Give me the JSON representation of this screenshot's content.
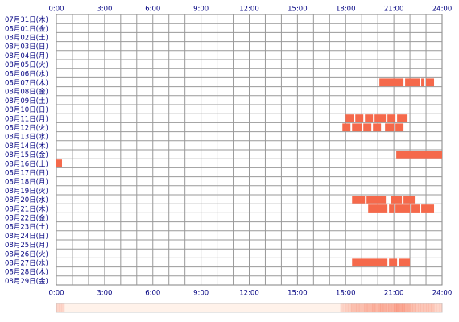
{
  "chart_data": {
    "type": "timeline",
    "color": "#f5694b",
    "xlim": [
      0,
      24
    ],
    "xticks": [
      {
        "value": 0,
        "label": "0:00"
      },
      {
        "value": 3,
        "label": "3:00"
      },
      {
        "value": 6,
        "label": "6:00"
      },
      {
        "value": 9,
        "label": "9:00"
      },
      {
        "value": 12,
        "label": "12:00"
      },
      {
        "value": 15,
        "label": "15:00"
      },
      {
        "value": 18,
        "label": "18:00"
      },
      {
        "value": 21,
        "label": "21:00"
      },
      {
        "value": 24,
        "label": "24:00"
      }
    ],
    "grid_step": 1,
    "rows": [
      {
        "label": "07月31日(木)",
        "segments": []
      },
      {
        "label": "08月01日(金)",
        "segments": []
      },
      {
        "label": "08月02日(土)",
        "segments": []
      },
      {
        "label": "08月03日(日)",
        "segments": []
      },
      {
        "label": "08月04日(月)",
        "segments": []
      },
      {
        "label": "08月05日(火)",
        "segments": []
      },
      {
        "label": "08月06日(水)",
        "segments": []
      },
      {
        "label": "08月07日(木)",
        "segments": [
          [
            20.1,
            21.6
          ],
          [
            21.7,
            22.6
          ],
          [
            22.7,
            22.9
          ],
          [
            23.0,
            23.5
          ]
        ]
      },
      {
        "label": "08月08日(金)",
        "segments": []
      },
      {
        "label": "08月09日(土)",
        "segments": []
      },
      {
        "label": "08月10日(日)",
        "segments": []
      },
      {
        "label": "08月11日(月)",
        "segments": [
          [
            18.0,
            18.5
          ],
          [
            18.6,
            19.1
          ],
          [
            19.2,
            19.7
          ],
          [
            19.8,
            20.5
          ],
          [
            20.6,
            21.1
          ],
          [
            21.2,
            21.85
          ]
        ]
      },
      {
        "label": "08月12日(火)",
        "segments": [
          [
            17.8,
            18.3
          ],
          [
            18.4,
            19.0
          ],
          [
            19.1,
            19.6
          ],
          [
            19.7,
            20.2
          ],
          [
            20.45,
            21.0
          ],
          [
            21.1,
            21.6
          ]
        ]
      },
      {
        "label": "08月13日(水)",
        "segments": []
      },
      {
        "label": "08月14日(木)",
        "segments": []
      },
      {
        "label": "08月15日(金)",
        "segments": [
          [
            21.15,
            24
          ]
        ]
      },
      {
        "label": "08月16日(土)",
        "segments": [
          [
            0,
            0.35
          ]
        ]
      },
      {
        "label": "08月17日(日)",
        "segments": []
      },
      {
        "label": "08月18日(月)",
        "segments": []
      },
      {
        "label": "08月19日(火)",
        "segments": []
      },
      {
        "label": "08月20日(水)",
        "segments": [
          [
            18.4,
            19.2
          ],
          [
            19.3,
            20.5
          ],
          [
            20.8,
            21.5
          ],
          [
            21.6,
            22.3
          ]
        ]
      },
      {
        "label": "08月21日(木)",
        "segments": [
          [
            19.4,
            20.6
          ],
          [
            20.7,
            21.0
          ],
          [
            21.1,
            22.0
          ],
          [
            22.1,
            22.6
          ],
          [
            22.7,
            23.5
          ]
        ]
      },
      {
        "label": "08月22日(金)",
        "segments": []
      },
      {
        "label": "08月23日(土)",
        "segments": []
      },
      {
        "label": "08月24日(日)",
        "segments": []
      },
      {
        "label": "08月25日(月)",
        "segments": []
      },
      {
        "label": "08月26日(火)",
        "segments": []
      },
      {
        "label": "08月27日(水)",
        "segments": [
          [
            18.4,
            20.6
          ],
          [
            20.7,
            21.2
          ],
          [
            21.3,
            22.0
          ]
        ]
      },
      {
        "label": "08月28日(木)",
        "segments": []
      },
      {
        "label": "08月29日(金)",
        "segments": []
      }
    ]
  }
}
